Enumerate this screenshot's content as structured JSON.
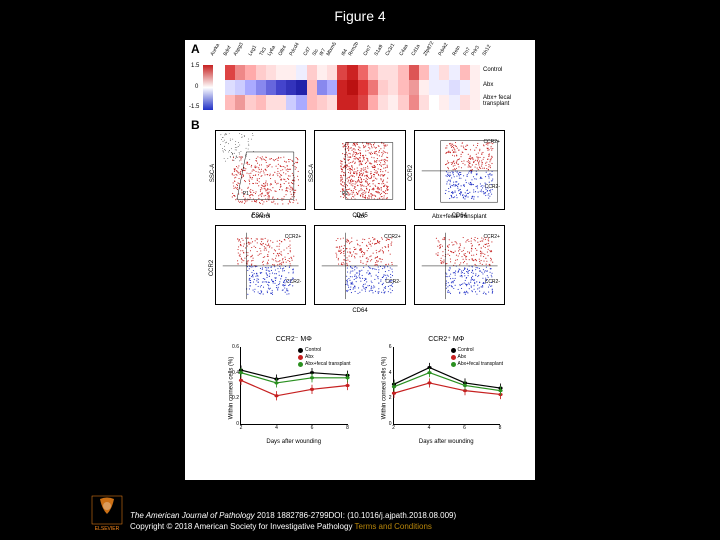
{
  "title": "Figure 4",
  "panelA": "A",
  "panelB": "B",
  "colorbar": {
    "max": "1.5",
    "mid": "0",
    "min": "-1.5",
    "gradient": [
      "#c62020",
      "#ffffff",
      "#2030c6"
    ]
  },
  "genes": [
    "Aurka",
    "Bdnf",
    "Aspg3",
    "Leg1",
    "Tlr3",
    "Ly6a",
    "Olfr4",
    "Pdcd4",
    "Cd7",
    "Slc",
    "Ifr7",
    "Mlxm5",
    "Ifi4",
    "Rrm2b",
    "Cre7",
    "S1a9",
    "Cx3r1",
    "C4aa",
    "Cd1a",
    "Zfp872",
    "Pdxk2",
    "Retn",
    "Fn7",
    "Prlr3",
    "Sh12"
  ],
  "heatmap_rows": [
    "Control",
    "Abx",
    "Abx+ fecal transplant"
  ],
  "heatmap_data": [
    [
      "#d44",
      "#e88",
      "#faa",
      "#fcc",
      "#fdd",
      "#fee",
      "#fee",
      "#eef",
      "#fcc",
      "#fee",
      "#fdd",
      "#d44",
      "#c22",
      "#e66",
      "#fbb",
      "#fdd",
      "#fdd",
      "#fbb",
      "#d55",
      "#fbb",
      "#eef",
      "#fdd",
      "#eef",
      "#fbb",
      "#fee"
    ],
    [
      "#ddf",
      "#ccf",
      "#aaf",
      "#88e",
      "#66d",
      "#44c",
      "#33b",
      "#22a",
      "#fbb",
      "#88e",
      "#aaf",
      "#c22",
      "#b11",
      "#d33",
      "#e77",
      "#fcc",
      "#fdd",
      "#fbb",
      "#e99",
      "#fee",
      "#eef",
      "#eef",
      "#ddf",
      "#eef",
      "#fee"
    ],
    [
      "#fbb",
      "#e99",
      "#fcc",
      "#fbb",
      "#fdd",
      "#fdd",
      "#ccf",
      "#aaf",
      "#fbb",
      "#fcc",
      "#fdd",
      "#c22",
      "#c22",
      "#d44",
      "#faa",
      "#fdd",
      "#fee",
      "#fcc",
      "#e88",
      "#fdd",
      "#fff",
      "#fee",
      "#eef",
      "#fdd",
      "#fee"
    ]
  ],
  "facs": {
    "row1": [
      {
        "ylabel": "SSC-A",
        "xlabel": "FSC-A",
        "gate": "P1",
        "color": "#c62020",
        "type": "ssc-fsc"
      },
      {
        "ylabel": "SSC-A",
        "xlabel": "CD45",
        "gate": "P2",
        "color": "#c62020",
        "type": "ssc-cd45"
      },
      {
        "ylabel": "CCR2",
        "xlabel": "CD64",
        "gate_top": "CCR2+",
        "gate_bot": "CCR2-",
        "type": "ccr2"
      }
    ],
    "row2_titles": [
      "Control",
      "Abx",
      "Abx+fecal transplant"
    ],
    "row2": {
      "ylabel": "CCR2",
      "xlabel": "CD64",
      "xlabel_shared": true,
      "gate_top": "CCR2+",
      "gate_bot": "CCR2-"
    }
  },
  "line_charts": [
    {
      "title": "CCR2⁻ MΦ",
      "ylabel": "Within corneal cells (%)",
      "xlabel": "Days after wounding",
      "ylim": [
        0,
        0.6
      ],
      "yticks": [
        0,
        0.2,
        0.4,
        0.6
      ],
      "xticks": [
        2,
        4,
        6,
        8
      ],
      "series": [
        {
          "name": "Control",
          "color": "#000000",
          "data": [
            [
              2,
              0.42
            ],
            [
              4,
              0.35
            ],
            [
              6,
              0.4
            ],
            [
              8,
              0.38
            ]
          ]
        },
        {
          "name": "Abx",
          "color": "#c62020",
          "data": [
            [
              2,
              0.34
            ],
            [
              4,
              0.22
            ],
            [
              6,
              0.27
            ],
            [
              8,
              0.3
            ]
          ]
        },
        {
          "name": "Abx+fecal transplant",
          "color": "#2a9020",
          "data": [
            [
              2,
              0.4
            ],
            [
              4,
              0.32
            ],
            [
              6,
              0.36
            ],
            [
              8,
              0.36
            ]
          ]
        }
      ]
    },
    {
      "title": "CCR2⁺ MΦ",
      "ylabel": "Within corneal cells (%)",
      "xlabel": "Days after wounding",
      "ylim": [
        0,
        6
      ],
      "yticks": [
        0,
        2,
        4,
        6
      ],
      "xticks": [
        2,
        4,
        6,
        8
      ],
      "series": [
        {
          "name": "Control",
          "color": "#000000",
          "data": [
            [
              2,
              3.1
            ],
            [
              4,
              4.4
            ],
            [
              6,
              3.2
            ],
            [
              8,
              2.8
            ]
          ]
        },
        {
          "name": "Abx",
          "color": "#c62020",
          "data": [
            [
              2,
              2.4
            ],
            [
              4,
              3.2
            ],
            [
              6,
              2.6
            ],
            [
              8,
              2.3
            ]
          ]
        },
        {
          "name": "Abx+fecal transplant",
          "color": "#2a9020",
          "data": [
            [
              2,
              2.9
            ],
            [
              4,
              4.0
            ],
            [
              6,
              3.0
            ],
            [
              8,
              2.6
            ]
          ]
        }
      ]
    }
  ],
  "footer": {
    "journal": "The American Journal of Pathology",
    "citation": " 2018 1882786-2799DOI: (10.1016/j.ajpath.2018.08.009) ",
    "copyright": "Copyright © 2018 American Society for Investigative Pathology ",
    "terms": "Terms and Conditions"
  },
  "colors": {
    "bg": "#000000",
    "panel_bg": "#ffffff",
    "red": "#c62020",
    "blue": "#2030c6",
    "green": "#2a9020",
    "elsevier": "#ff8c1a"
  }
}
